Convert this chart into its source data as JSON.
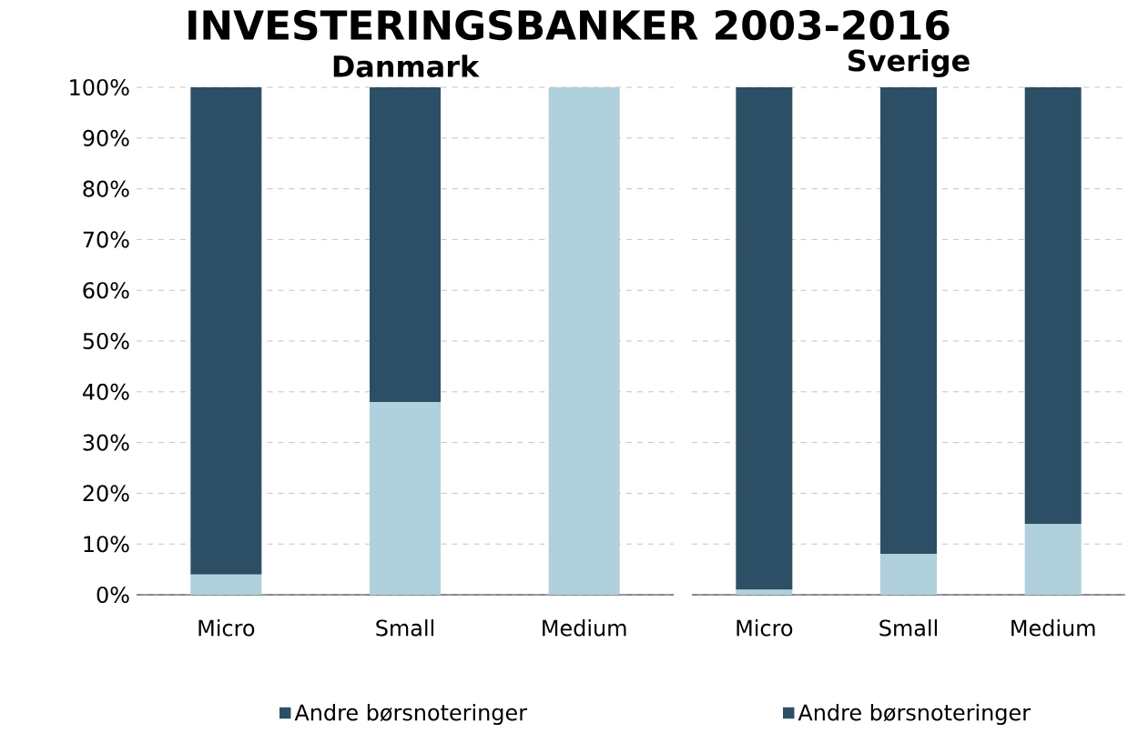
{
  "chart_data": [
    {
      "type": "bar",
      "title": "Danmark",
      "annotations": [
        "INVESTERINGSBANKER 2003-2016"
      ],
      "stacked": true,
      "categories": [
        "Micro",
        "Small",
        "Medium"
      ],
      "series": [
        {
          "color": "#afd0dc",
          "values": [
            4,
            38,
            100
          ]
        },
        {
          "name": "Andre børsnoteringer",
          "color": "#2c4f66",
          "values": [
            96,
            62,
            0
          ]
        }
      ],
      "ylim": [
        0,
        100
      ],
      "yticks": [
        {
          "value": 0,
          "label": "0%"
        },
        {
          "value": 10,
          "label": "10%"
        },
        {
          "value": 20,
          "label": "20%"
        },
        {
          "value": 30,
          "label": "30%"
        },
        {
          "value": 40,
          "label": "40%"
        },
        {
          "value": 50,
          "label": "50%"
        },
        {
          "value": 60,
          "label": "60%"
        },
        {
          "value": 70,
          "label": "70%"
        },
        {
          "value": 80,
          "label": "80%"
        },
        {
          "value": 90,
          "label": "90%"
        },
        {
          "value": 100,
          "label": "100%"
        }
      ],
      "grid": "y",
      "legend": "bottom"
    },
    {
      "type": "bar",
      "title": "Sverige",
      "stacked": true,
      "categories": [
        "Micro",
        "Small",
        "Medium"
      ],
      "series": [
        {
          "color": "#afd0dc",
          "values": [
            1,
            8,
            14
          ]
        },
        {
          "name": "Andre børsnoteringer",
          "color": "#2c4f66",
          "values": [
            99,
            92,
            86
          ]
        }
      ],
      "ylim": [
        0,
        100
      ],
      "yticks": [
        0,
        10,
        20,
        30,
        40,
        50,
        60,
        70,
        80,
        90,
        100
      ],
      "tick_labels": "x",
      "grid": "y",
      "legend": "bottom"
    }
  ]
}
